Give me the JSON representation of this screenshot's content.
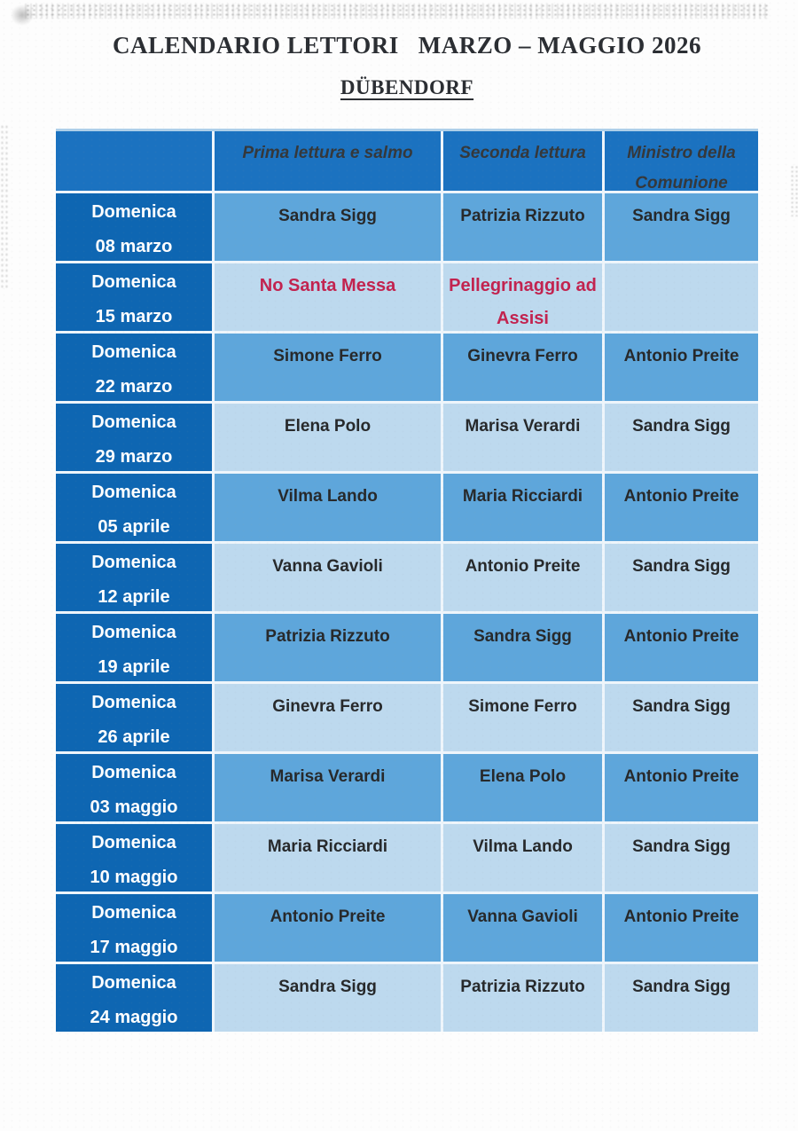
{
  "page": {
    "title_part1": "CALENDARIO LETTORI",
    "title_part2": "MARZO – MAGGIO 2026",
    "subtitle": "DÜBENDORF"
  },
  "table": {
    "header": [
      "",
      "Prima lettura e salmo",
      "Seconda lettura",
      "Ministro della Comunione"
    ],
    "rows": [
      {
        "day": "Domenica",
        "date": "08 marzo",
        "cells": [
          "Sandra Sigg",
          "Patrizia Rizzuto",
          "Sandra Sigg"
        ],
        "tone": "medium",
        "red": false
      },
      {
        "day": "Domenica",
        "date": "15 marzo",
        "cells": [
          "No Santa Messa",
          "Pellegrinaggio ad Assisi",
          ""
        ],
        "tone": "light",
        "red": true
      },
      {
        "day": "Domenica",
        "date": "22 marzo",
        "cells": [
          "Simone Ferro",
          "Ginevra Ferro",
          "Antonio Preite"
        ],
        "tone": "medium",
        "red": false
      },
      {
        "day": "Domenica",
        "date": "29 marzo",
        "cells": [
          "Elena Polo",
          "Marisa Verardi",
          "Sandra Sigg"
        ],
        "tone": "light",
        "red": false
      },
      {
        "day": "Domenica",
        "date": "05 aprile",
        "cells": [
          "Vilma Lando",
          "Maria Ricciardi",
          "Antonio Preite"
        ],
        "tone": "medium",
        "red": false
      },
      {
        "day": "Domenica",
        "date": "12 aprile",
        "cells": [
          "Vanna Gavioli",
          "Antonio Preite",
          "Sandra Sigg"
        ],
        "tone": "light",
        "red": false
      },
      {
        "day": "Domenica",
        "date": "19 aprile",
        "cells": [
          "Patrizia Rizzuto",
          "Sandra Sigg",
          "Antonio Preite"
        ],
        "tone": "medium",
        "red": false
      },
      {
        "day": "Domenica",
        "date": "26 aprile",
        "cells": [
          "Ginevra Ferro",
          "Simone Ferro",
          "Sandra Sigg"
        ],
        "tone": "light",
        "red": false
      },
      {
        "day": "Domenica",
        "date": "03 maggio",
        "cells": [
          "Marisa Verardi",
          "Elena Polo",
          "Antonio Preite"
        ],
        "tone": "medium",
        "red": false
      },
      {
        "day": "Domenica",
        "date": "10 maggio",
        "cells": [
          "Maria Ricciardi",
          "Vilma Lando",
          "Sandra Sigg"
        ],
        "tone": "light",
        "red": false
      },
      {
        "day": "Domenica",
        "date": "17 maggio",
        "cells": [
          "Antonio Preite",
          "Vanna Gavioli",
          "Antonio Preite"
        ],
        "tone": "medium",
        "red": false
      },
      {
        "day": "Domenica",
        "date": "24 maggio",
        "cells": [
          "Sandra Sigg",
          "Patrizia Rizzuto",
          "Sandra Sigg"
        ],
        "tone": "light",
        "red": false
      }
    ]
  },
  "colors": {
    "header_bg": "#1b72c0",
    "day_col_bg": "#0e66b2",
    "row_medium_bg": "#5ea6db",
    "row_light_bg": "#bdd9ee",
    "grid_line": "#eef5fb",
    "top_strip": "#aecfe9",
    "red_text": "#c2234f",
    "cell_text": "#27292b",
    "header_text": "#35383b",
    "day_text": "#ffffff",
    "title_text": "#2b2e33"
  }
}
